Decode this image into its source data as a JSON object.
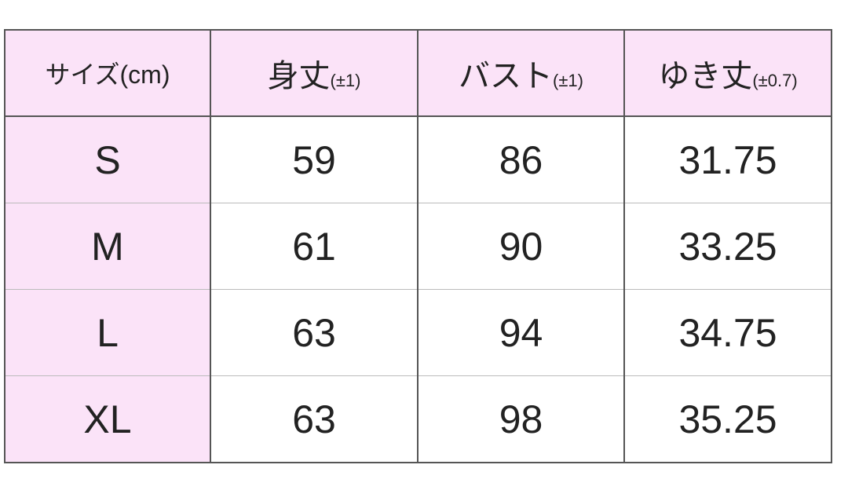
{
  "table": {
    "headers": [
      {
        "main": "サイズ(cm)",
        "sub": ""
      },
      {
        "main": "身丈",
        "sub": "(±1)"
      },
      {
        "main": "バスト",
        "sub": "(±1)"
      },
      {
        "main": "ゆき丈",
        "sub": "(±0.7)"
      }
    ],
    "rows": [
      [
        "S",
        "59",
        "86",
        "31.75"
      ],
      [
        "M",
        "61",
        "90",
        "33.25"
      ],
      [
        "L",
        "63",
        "94",
        "34.75"
      ],
      [
        "XL",
        "63",
        "98",
        "35.25"
      ]
    ]
  },
  "colors": {
    "header_bg": "#fbe3f8",
    "border": "#555555"
  }
}
